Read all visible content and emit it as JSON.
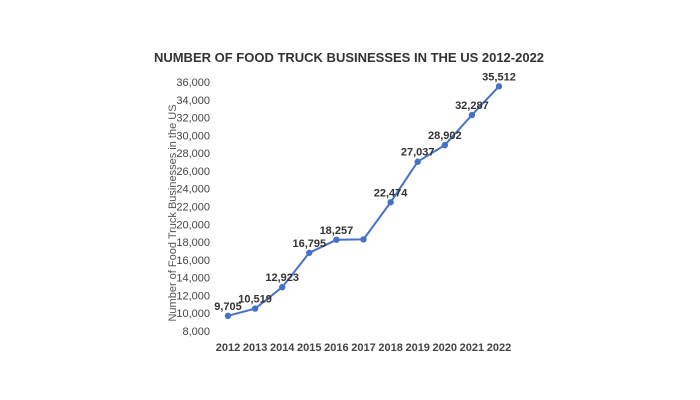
{
  "chart_data": {
    "type": "line",
    "title": "NUMBER OF FOOD TRUCK BUSINESSES IN THE US 2012-2022",
    "xlabel": "",
    "ylabel": "Number of Food Truck Businesses in the US",
    "x": [
      "2012",
      "2013",
      "2014",
      "2015",
      "2016",
      "2017",
      "2018",
      "2019",
      "2020",
      "2021",
      "2022"
    ],
    "series": [
      {
        "values": [
          9705,
          10519,
          12923,
          16795,
          18257,
          18300,
          22474,
          27037,
          28902,
          32287,
          35512
        ],
        "data_labels": [
          "9,705",
          "10,519",
          "12,923",
          "16,795",
          "18,257",
          "",
          "22,474",
          "27,037",
          "28,902",
          "32,287",
          "35,512"
        ]
      }
    ],
    "yticks": [
      "8,000",
      "10,000",
      "12,000",
      "14,000",
      "16,000",
      "18,000",
      "20,000",
      "22,000",
      "24,000",
      "26,000",
      "28,000",
      "30,000",
      "32,000",
      "34,000",
      "36,000"
    ],
    "ylim": [
      8000,
      36000
    ],
    "grid": false,
    "line_color": "#4472c4"
  }
}
